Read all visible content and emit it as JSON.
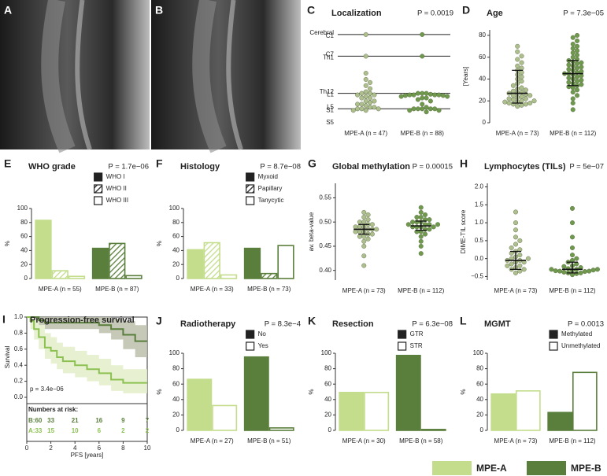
{
  "chart_data": [
    {
      "type": "image",
      "panel": "A"
    },
    {
      "type": "image",
      "panel": "B"
    },
    {
      "type": "strip",
      "panel": "C",
      "title": "Localization",
      "pvalue": "P = 0.0019",
      "yaxis_line": false,
      "categories": [
        "MPE-A (n = 47)",
        "MPE-B (n = 88)"
      ],
      "ylim": [
        29,
        -1
      ],
      "yticks": [
        {
          "value": 0,
          "label": "Cerebral"
        },
        {
          "value": 1,
          "label": "C1"
        },
        {
          "value": 7,
          "label": "C7"
        },
        {
          "value": 8,
          "label": "Th1"
        },
        {
          "value": 19,
          "label": "Th12"
        },
        {
          "value": 20,
          "label": "L1"
        },
        {
          "value": 24,
          "label": "L5"
        },
        {
          "value": 25,
          "label": "S1"
        },
        {
          "value": 29,
          "label": "S5"
        }
      ],
      "hlines": [
        0.5,
        7.5,
        19.5,
        24.5
      ],
      "series": [
        {
          "color": "#aebf8e",
          "values": [
            0.5,
            7.5,
            13,
            15,
            16,
            17,
            18,
            19,
            19.5,
            19.5,
            20,
            20,
            20.5,
            21,
            21,
            22,
            22,
            22.5,
            23,
            23,
            23.5,
            24,
            24,
            24.5,
            24.5,
            24.5,
            25,
            25
          ]
        },
        {
          "color": "#6f9a4d",
          "values": [
            0.5,
            7.5,
            19.5,
            19.5,
            19.5,
            19.8,
            20,
            20,
            20,
            20,
            20.2,
            20.2,
            20.5,
            20.5,
            21,
            21,
            21.5,
            22,
            23,
            24,
            24.5,
            24.5,
            24.5,
            24.5,
            24.5,
            25,
            25,
            25.5
          ]
        }
      ]
    },
    {
      "type": "strip",
      "panel": "D",
      "title": "Age",
      "pvalue": "P = 7.3e−05",
      "yaxis_line": true,
      "ylabel": "[Years]",
      "categories": [
        "MPE-A (n = 73)",
        "MPE-B (n = 112)"
      ],
      "ylim": [
        0,
        85
      ],
      "yticks": [
        0,
        20,
        40,
        60,
        80
      ],
      "series": [
        {
          "color": "#aebf8e",
          "median": 27,
          "q1": 18,
          "q3": 48,
          "values": [
            15,
            16,
            17,
            17,
            18,
            18,
            19,
            19,
            20,
            20,
            21,
            22,
            22,
            23,
            24,
            25,
            25,
            26,
            27,
            27,
            28,
            29,
            30,
            31,
            32,
            34,
            36,
            38,
            40,
            42,
            44,
            46,
            48,
            50,
            52,
            55,
            58,
            61,
            65,
            70
          ]
        },
        {
          "color": "#6f9a4d",
          "median": 45,
          "q1": 34,
          "q3": 57,
          "values": [
            12,
            18,
            22,
            25,
            28,
            30,
            32,
            33,
            34,
            35,
            36,
            37,
            38,
            39,
            40,
            41,
            42,
            43,
            44,
            45,
            45,
            46,
            47,
            48,
            49,
            50,
            51,
            52,
            53,
            54,
            55,
            56,
            57,
            58,
            60,
            62,
            64,
            66,
            68,
            70,
            72,
            75,
            78,
            80
          ]
        }
      ]
    },
    {
      "type": "bar",
      "panel": "E",
      "title": "WHO grade",
      "pvalue": "P = 1.7e−06",
      "ylabel": "%",
      "categories": [
        "MPE-A (n = 55)",
        "MPE-B (n = 87)"
      ],
      "colors": [
        "#c3dd8c",
        "#5a7f3c"
      ],
      "ylim": [
        0,
        100
      ],
      "yticks": [
        0,
        20,
        40,
        60,
        80,
        100
      ],
      "series": [
        {
          "name": "WHO I",
          "style": "solid",
          "values": [
            84,
            44
          ]
        },
        {
          "name": "WHO II",
          "style": "hatch",
          "values": [
            12,
            51
          ]
        },
        {
          "name": "WHO III",
          "style": "outline",
          "values": [
            4,
            5
          ]
        }
      ]
    },
    {
      "type": "bar",
      "panel": "F",
      "title": "Histology",
      "pvalue": "P = 8.7e−08",
      "ylabel": "%",
      "categories": [
        "MPE-A (n = 33)",
        "MPE-B (n = 73)"
      ],
      "colors": [
        "#c3dd8c",
        "#5a7f3c"
      ],
      "ylim": [
        0,
        100
      ],
      "yticks": [
        0,
        20,
        40,
        60,
        80,
        100
      ],
      "series": [
        {
          "name": "Myxoid",
          "style": "solid",
          "values": [
            42,
            44
          ]
        },
        {
          "name": "Papillary",
          "style": "hatch",
          "values": [
            52,
            8
          ]
        },
        {
          "name": "Tanycytic",
          "style": "outline",
          "values": [
            6,
            48
          ]
        }
      ]
    },
    {
      "type": "strip",
      "panel": "G",
      "title": "Global methylation",
      "pvalue": "P = 0.00015",
      "yaxis_line": true,
      "ylabel": "av. beta-value",
      "categories": [
        "MPE-A (n = 73)",
        "MPE-B (n = 112)"
      ],
      "ylim": [
        0.38,
        0.58
      ],
      "yticks": [
        {
          "value": 0.4,
          "label": "0.40"
        },
        0.45,
        {
          "value": 0.5,
          "label": "0.50"
        },
        0.55
      ],
      "series": [
        {
          "color": "#aebf8e",
          "median": 0.485,
          "q1": 0.475,
          "q3": 0.495,
          "values": [
            0.41,
            0.43,
            0.45,
            0.46,
            0.465,
            0.47,
            0.47,
            0.475,
            0.475,
            0.48,
            0.48,
            0.48,
            0.485,
            0.485,
            0.485,
            0.49,
            0.49,
            0.49,
            0.495,
            0.495,
            0.5,
            0.5,
            0.505,
            0.51,
            0.515,
            0.52
          ]
        },
        {
          "color": "#6f9a4d",
          "median": 0.492,
          "q1": 0.483,
          "q3": 0.502,
          "values": [
            0.435,
            0.45,
            0.46,
            0.47,
            0.475,
            0.48,
            0.48,
            0.485,
            0.485,
            0.49,
            0.49,
            0.49,
            0.49,
            0.495,
            0.495,
            0.495,
            0.495,
            0.5,
            0.5,
            0.5,
            0.505,
            0.505,
            0.51,
            0.51,
            0.515,
            0.52,
            0.53
          ]
        }
      ]
    },
    {
      "type": "strip",
      "panel": "H",
      "title": "Lymphocytes (TILs)",
      "pvalue": "P = 5e−07",
      "yaxis_line": true,
      "ylabel": "DIME-TIL score",
      "categories": [
        "MPE-A (n = 73)",
        "MPE-B (n = 112)"
      ],
      "ylim": [
        -0.6,
        2.1
      ],
      "yticks": [
        {
          "value": -0.5,
          "label": "−0.5"
        },
        {
          "value": 0,
          "label": "0.0"
        },
        0.5,
        {
          "value": 1,
          "label": "1.0"
        },
        1.5,
        {
          "value": 2,
          "label": "2.0"
        }
      ],
      "series": [
        {
          "color": "#aebf8e",
          "median": -0.05,
          "q1": -0.3,
          "q3": 0.2,
          "values": [
            -0.4,
            -0.35,
            -0.3,
            -0.3,
            -0.25,
            -0.2,
            -0.2,
            -0.15,
            -0.1,
            -0.1,
            -0.05,
            -0.05,
            0,
            0,
            0.05,
            0.1,
            0.15,
            0.2,
            0.25,
            0.3,
            0.4,
            0.5,
            0.6,
            0.8,
            1.0,
            1.3
          ]
        },
        {
          "color": "#6f9a4d",
          "median": -0.3,
          "q1": -0.4,
          "q3": -0.1,
          "values": [
            -0.45,
            -0.42,
            -0.4,
            -0.4,
            -0.38,
            -0.36,
            -0.35,
            -0.35,
            -0.34,
            -0.33,
            -0.32,
            -0.3,
            -0.3,
            -0.3,
            -0.28,
            -0.25,
            -0.22,
            -0.2,
            -0.15,
            -0.1,
            -0.05,
            0,
            0.1,
            0.3,
            0.6,
            1.0,
            1.4
          ]
        }
      ]
    },
    {
      "type": "km",
      "panel": "I",
      "title": "Progression-free survival",
      "pvalue": "p = 3.4e−06",
      "xlabel": "PFS [years]",
      "ylabel": "Survival",
      "xlim": [
        0,
        10
      ],
      "xticks": [
        0,
        2,
        4,
        6,
        8,
        10
      ],
      "ylim": [
        0,
        1
      ],
      "yticks": [
        {
          "value": 0,
          "label": "0.0"
        },
        0.2,
        0.4,
        0.6,
        0.8,
        {
          "value": 1,
          "label": "1.0"
        }
      ],
      "series": [
        {
          "color": "#5a7f3c",
          "band_color": "#bcc0aa",
          "x": [
            0,
            0.5,
            1,
            1.5,
            2,
            3,
            4,
            5,
            6,
            7,
            8,
            9,
            10
          ],
          "values": [
            1,
            1,
            0.96,
            0.93,
            0.93,
            0.93,
            0.93,
            0.93,
            0.9,
            0.85,
            0.78,
            0.7,
            0.7
          ],
          "lower": [
            1,
            1,
            0.9,
            0.85,
            0.85,
            0.85,
            0.85,
            0.85,
            0.8,
            0.72,
            0.6,
            0.5,
            0.5
          ],
          "upper": [
            1,
            1,
            1,
            1,
            1,
            1,
            1,
            1,
            1,
            0.98,
            0.95,
            0.9,
            0.9
          ]
        },
        {
          "color": "#8cc152",
          "band_color": "#e3efc9",
          "x": [
            0,
            0.3,
            0.6,
            1,
            1.5,
            2,
            2.5,
            3,
            4,
            5,
            6,
            7,
            8,
            9,
            10
          ],
          "values": [
            1,
            0.95,
            0.85,
            0.75,
            0.62,
            0.58,
            0.5,
            0.45,
            0.4,
            0.35,
            0.3,
            0.22,
            0.18,
            0.18,
            0.18
          ],
          "lower": [
            1,
            0.85,
            0.72,
            0.6,
            0.48,
            0.42,
            0.35,
            0.3,
            0.25,
            0.2,
            0.15,
            0.08,
            0.05,
            0.05,
            0.05
          ],
          "upper": [
            1,
            1,
            0.98,
            0.9,
            0.8,
            0.75,
            0.68,
            0.63,
            0.58,
            0.53,
            0.48,
            0.4,
            0.35,
            0.35,
            0.35
          ]
        }
      ],
      "risk_title": "Numbers at risk:",
      "risk": [
        {
          "label": "B:60",
          "values": [
            33,
            21,
            16,
            9,
            7
          ]
        },
        {
          "label": "A:33",
          "values": [
            15,
            10,
            6,
            2,
            2
          ]
        }
      ]
    },
    {
      "type": "bar",
      "panel": "J",
      "title": "Radiotherapy",
      "pvalue": "P = 8.3e−4",
      "ylabel": "%",
      "categories": [
        "MPE-A (n = 27)",
        "MPE-B (n = 51)"
      ],
      "colors": [
        "#c3dd8c",
        "#5a7f3c"
      ],
      "ylim": [
        0,
        100
      ],
      "yticks": [
        0,
        20,
        40,
        60,
        80,
        100
      ],
      "series": [
        {
          "name": "No",
          "style": "solid",
          "values": [
            67,
            96
          ]
        },
        {
          "name": "Yes",
          "style": "outline",
          "values": [
            33,
            4
          ]
        }
      ]
    },
    {
      "type": "bar",
      "panel": "K",
      "title": "Resection",
      "pvalue": "P = 6.3e−08",
      "ylabel": "%",
      "categories": [
        "MPE-A (n = 30)",
        "MPE-B (n = 58)"
      ],
      "colors": [
        "#c3dd8c",
        "#5a7f3c"
      ],
      "ylim": [
        0,
        100
      ],
      "yticks": [
        0,
        20,
        40,
        60,
        80,
        100
      ],
      "series": [
        {
          "name": "GTR",
          "style": "solid",
          "values": [
            50,
            98
          ]
        },
        {
          "name": "STR",
          "style": "outline",
          "values": [
            50,
            2
          ]
        }
      ]
    },
    {
      "type": "bar",
      "panel": "L",
      "title": "MGMT",
      "pvalue": "P = 0.0013",
      "ylabel": "%",
      "categories": [
        "MPE-A (n = 73)",
        "MPE-B (n = 112)"
      ],
      "colors": [
        "#c3dd8c",
        "#5a7f3c"
      ],
      "ylim": [
        0,
        100
      ],
      "yticks": [
        0,
        20,
        40,
        60,
        80,
        100
      ],
      "series": [
        {
          "name": "Methylated",
          "style": "solid",
          "values": [
            48,
            24
          ]
        },
        {
          "name": "Unmethylated",
          "style": "outline",
          "values": [
            52,
            76
          ]
        }
      ]
    }
  ],
  "legend": [
    {
      "label": "MPE-A",
      "color": "#c3dd8c"
    },
    {
      "label": "MPE-B",
      "color": "#5a7f3c"
    }
  ]
}
